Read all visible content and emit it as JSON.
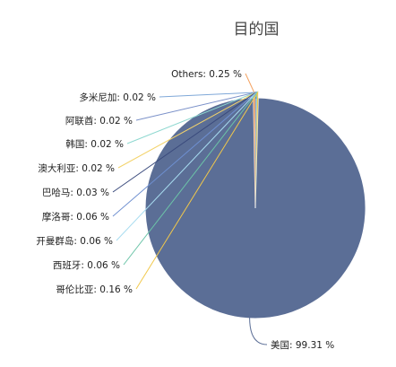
{
  "chart_data": {
    "type": "pie",
    "title": "目的国",
    "unit": "%",
    "slices": [
      {
        "name": "美国",
        "value": 99.31,
        "label": "美国: 99.31 %",
        "color": "#5b6e96"
      },
      {
        "name": "Others",
        "value": 0.25,
        "label": "Others: 0.25 %",
        "color": "#f4a261"
      },
      {
        "name": "多米尼加",
        "value": 0.02,
        "label": "多米尼加: 0.02 %",
        "color": "#7fa8d8"
      },
      {
        "name": "阿联酋",
        "value": 0.02,
        "label": "阿联酋: 0.02 %",
        "color": "#7b91c9"
      },
      {
        "name": "韩国",
        "value": 0.02,
        "label": "韩国: 0.02 %",
        "color": "#8ed8d0"
      },
      {
        "name": "澳大利亚",
        "value": 0.02,
        "label": "澳大利亚: 0.02 %",
        "color": "#f3d36b"
      },
      {
        "name": "巴哈马",
        "value": 0.03,
        "label": "巴哈马: 0.03 %",
        "color": "#3a4a7c"
      },
      {
        "name": "摩洛哥",
        "value": 0.06,
        "label": "摩洛哥: 0.06 %",
        "color": "#6e8fd0"
      },
      {
        "name": "开曼群岛",
        "value": 0.06,
        "label": "开曼群岛: 0.06 %",
        "color": "#a8dcf0"
      },
      {
        "name": "西班牙",
        "value": 0.06,
        "label": "西班牙: 0.06 %",
        "color": "#6cc4a8"
      },
      {
        "name": "哥伦比亚",
        "value": 0.16,
        "label": "哥伦比亚: 0.16 %",
        "color": "#f1c84b"
      }
    ],
    "legend": "none"
  }
}
